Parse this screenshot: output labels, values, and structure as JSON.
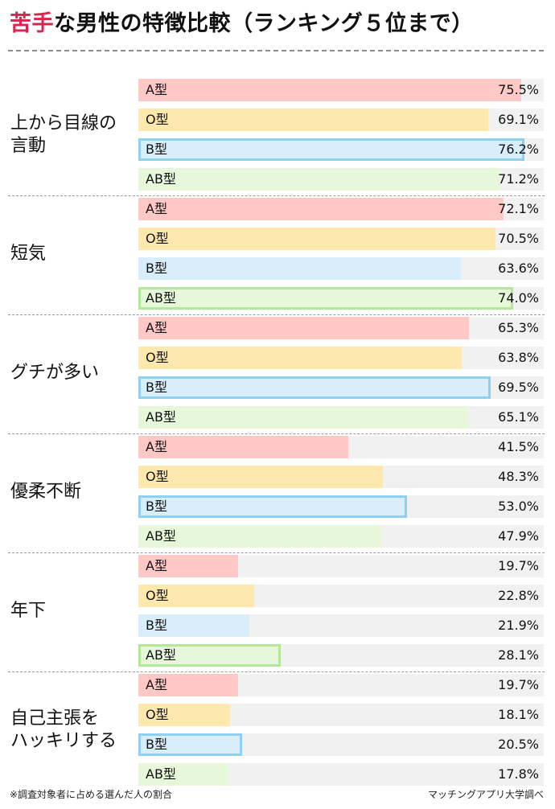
{
  "title": {
    "accent": "苦手",
    "rest": "な男性の特徴比較（ランキング５位まで）"
  },
  "footnote": "※調査対象者に占める選んだ人の割合",
  "source": "マッチングアプリ大学調べ",
  "colors": {
    "title_accent": "#d6264f",
    "A": "#fdc8c5",
    "O": "#fde8ad",
    "B": "#d8eefb",
    "AB": "#e6f8d9",
    "B_border": "#8fd0f0",
    "AB_border": "#b3e79a",
    "track": "#f1f1f1"
  },
  "chart_data": {
    "type": "bar",
    "orientation": "horizontal",
    "title": "苦手な男性の特徴比較（ランキング５位まで）",
    "x_range": [
      0,
      80
    ],
    "series": [
      {
        "name": "A型",
        "key": "A"
      },
      {
        "name": "O型",
        "key": "O"
      },
      {
        "name": "B型",
        "key": "B"
      },
      {
        "name": "AB型",
        "key": "AB"
      }
    ],
    "groups": [
      {
        "label": "上から目線の\n言動",
        "highlight": "B",
        "values": {
          "A": 75.5,
          "O": 69.1,
          "B": 76.2,
          "AB": 71.2
        },
        "display": {
          "A": "75.5%",
          "O": "69.1%",
          "B": "76.2%",
          "AB": "71.2%"
        }
      },
      {
        "label": "短気",
        "highlight": "AB",
        "values": {
          "A": 72.1,
          "O": 70.5,
          "B": 63.6,
          "AB": 74.0
        },
        "display": {
          "A": "72.1%",
          "O": "70.5%",
          "B": "63.6%",
          "AB": "74.0%"
        }
      },
      {
        "label": "グチが多い",
        "highlight": "B",
        "values": {
          "A": 65.3,
          "O": 63.8,
          "B": 69.5,
          "AB": 65.1
        },
        "display": {
          "A": "65.3%",
          "O": "63.8%",
          "B": "69.5%",
          "AB": "65.1%"
        }
      },
      {
        "label": "優柔不断",
        "highlight": "B",
        "values": {
          "A": 41.5,
          "O": 48.3,
          "B": 53.0,
          "AB": 47.9
        },
        "display": {
          "A": "41.5%",
          "O": "48.3%",
          "B": "53.0%",
          "AB": "47.9%"
        }
      },
      {
        "label": "年下",
        "highlight": "AB",
        "values": {
          "A": 19.7,
          "O": 22.8,
          "B": 21.9,
          "AB": 28.1
        },
        "display": {
          "A": "19.7%",
          "O": "22.8%",
          "B": "21.9%",
          "AB": "28.1%"
        }
      },
      {
        "label": "自己主張を\nハッキリする",
        "highlight": "B",
        "values": {
          "A": 19.7,
          "O": 18.1,
          "B": 20.5,
          "AB": 17.8
        },
        "display": {
          "A": "19.7%",
          "O": "18.1%",
          "B": "20.5%",
          "AB": "17.8%"
        }
      }
    ]
  }
}
